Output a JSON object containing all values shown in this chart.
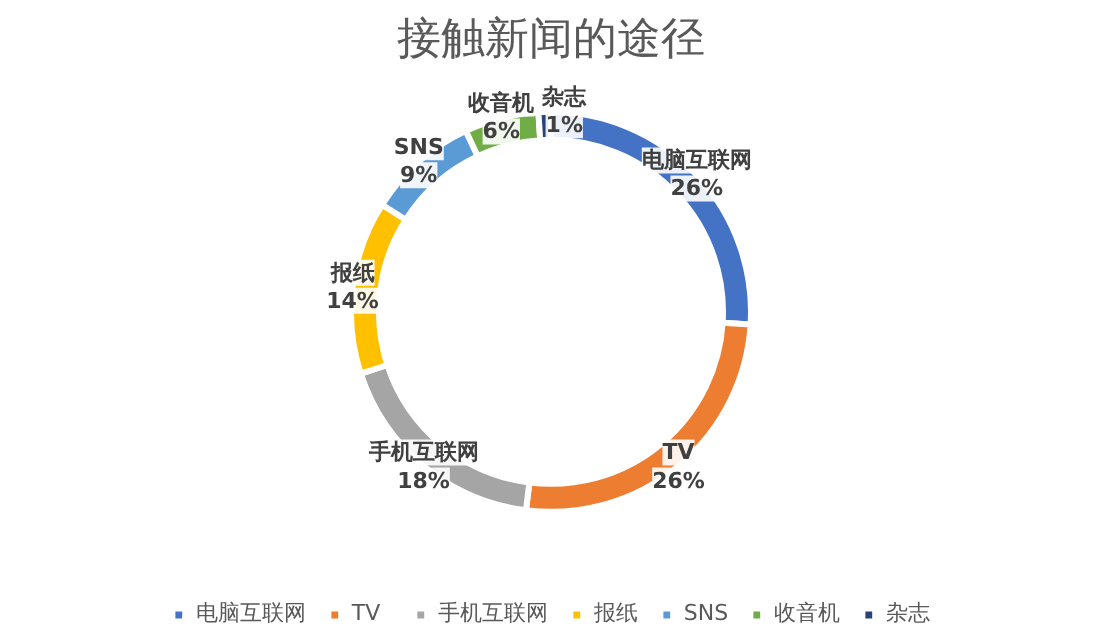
{
  "chart_data": {
    "type": "donut",
    "title": "接触新闻的途径",
    "categories": [
      "电脑互联网",
      "TV",
      "手机互联网",
      "报纸",
      "SNS",
      "收音机",
      "杂志"
    ],
    "values": [
      26,
      26,
      18,
      14,
      9,
      6,
      1
    ],
    "value_labels": [
      "26%",
      "26%",
      "18%",
      "14%",
      "9%",
      "6%",
      "1%"
    ],
    "colors": [
      "#4472c4",
      "#ed7d31",
      "#a5a5a5",
      "#ffc000",
      "#5b9bd5",
      "#70ad47",
      "#264478"
    ],
    "legend": "bottom"
  }
}
